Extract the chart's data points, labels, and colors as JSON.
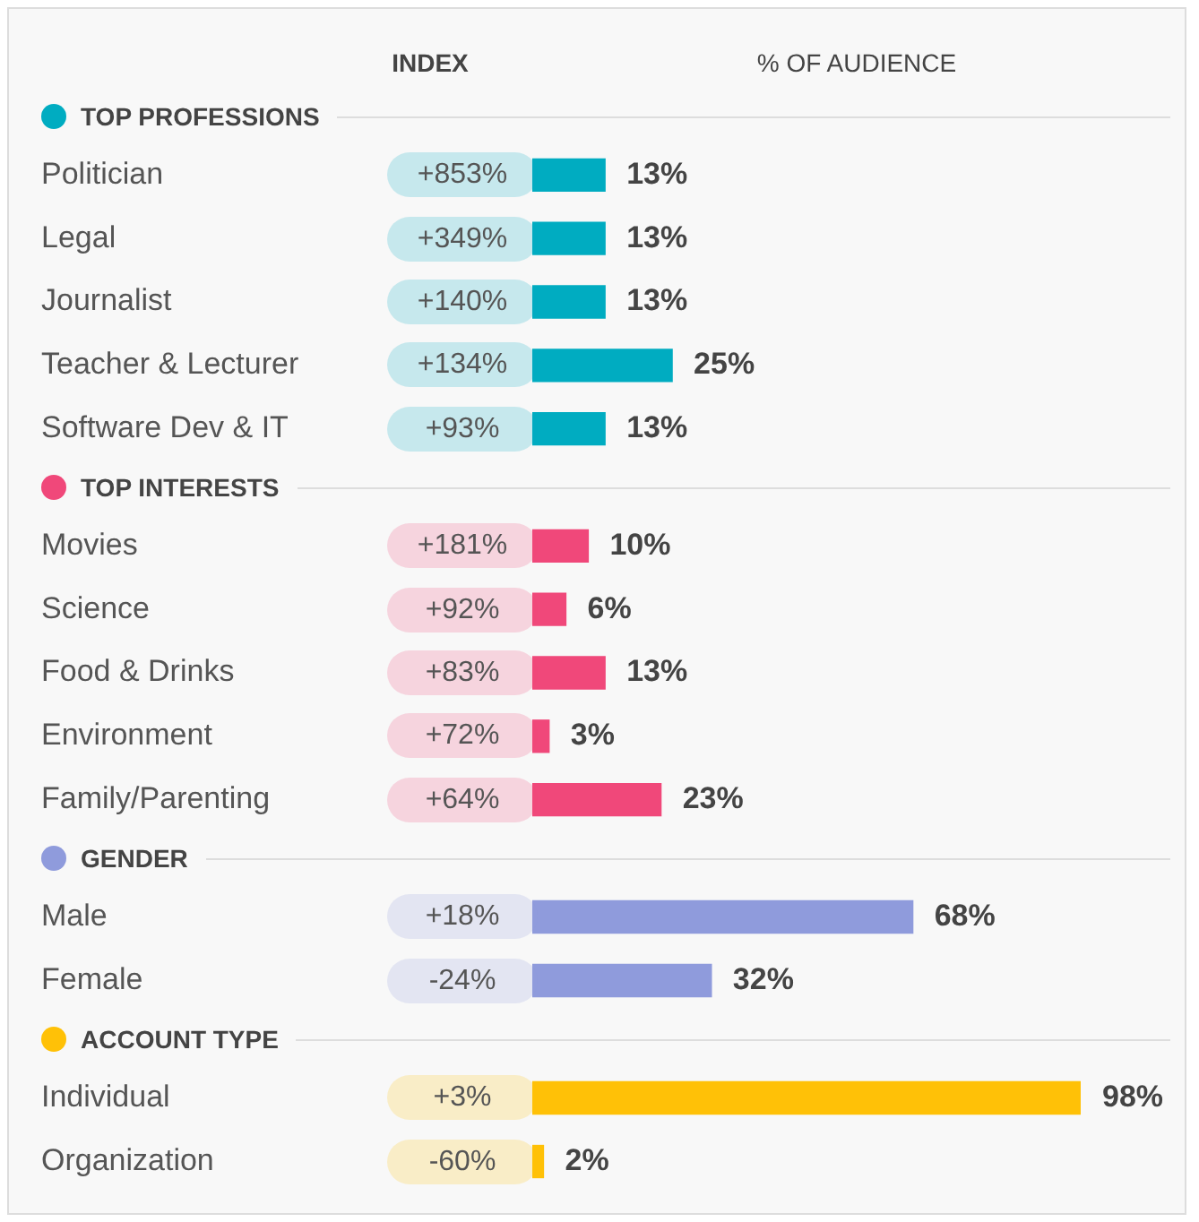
{
  "chart_data": [
    {
      "type": "other",
      "annotations": [
        "INDEX",
        "% OF AUDIENCE"
      ]
    },
    {
      "type": "bar",
      "orientation": "horizontal",
      "title": "TOP PROFESSIONS",
      "categories": [
        "Politician",
        "Legal",
        "Journalist",
        "Teacher & Lecturer",
        "Software Dev & IT"
      ],
      "values": [
        13,
        13,
        13,
        25,
        13
      ],
      "value_labels": [
        "13%",
        "13%",
        "13%",
        "25%",
        "13%"
      ],
      "color": "#00acc1",
      "tick_labels": "y",
      "annotations": [
        "+853%",
        "+349%",
        "+140%",
        "+134%",
        "+93%"
      ]
    },
    {
      "type": "bar",
      "orientation": "horizontal",
      "title": "TOP INTERESTS",
      "categories": [
        "Movies",
        "Science",
        "Food & Drinks",
        "Environment",
        "Family/Parenting"
      ],
      "values": [
        10,
        6,
        13,
        3,
        23
      ],
      "value_labels": [
        "10%",
        "6%",
        "13%",
        "3%",
        "23%"
      ],
      "color": "#f0487a",
      "tick_labels": "y",
      "annotations": [
        "+181%",
        "+92%",
        "+83%",
        "+72%",
        "+64%"
      ]
    },
    {
      "type": "bar",
      "orientation": "horizontal",
      "title": "GENDER",
      "categories": [
        "Male",
        "Female"
      ],
      "values": [
        68,
        32
      ],
      "value_labels": [
        "68%",
        "32%"
      ],
      "color": "#8f9bdc",
      "tick_labels": "y",
      "annotations": [
        "+18%",
        "-24%"
      ]
    },
    {
      "type": "bar",
      "orientation": "horizontal",
      "title": "ACCOUNT TYPE",
      "categories": [
        "Individual",
        "Organization"
      ],
      "values": [
        98,
        2
      ],
      "value_labels": [
        "98%",
        "2%"
      ],
      "color": "#ffc107",
      "tick_labels": "y",
      "annotations": [
        "+3%",
        "-60%"
      ]
    }
  ]
}
